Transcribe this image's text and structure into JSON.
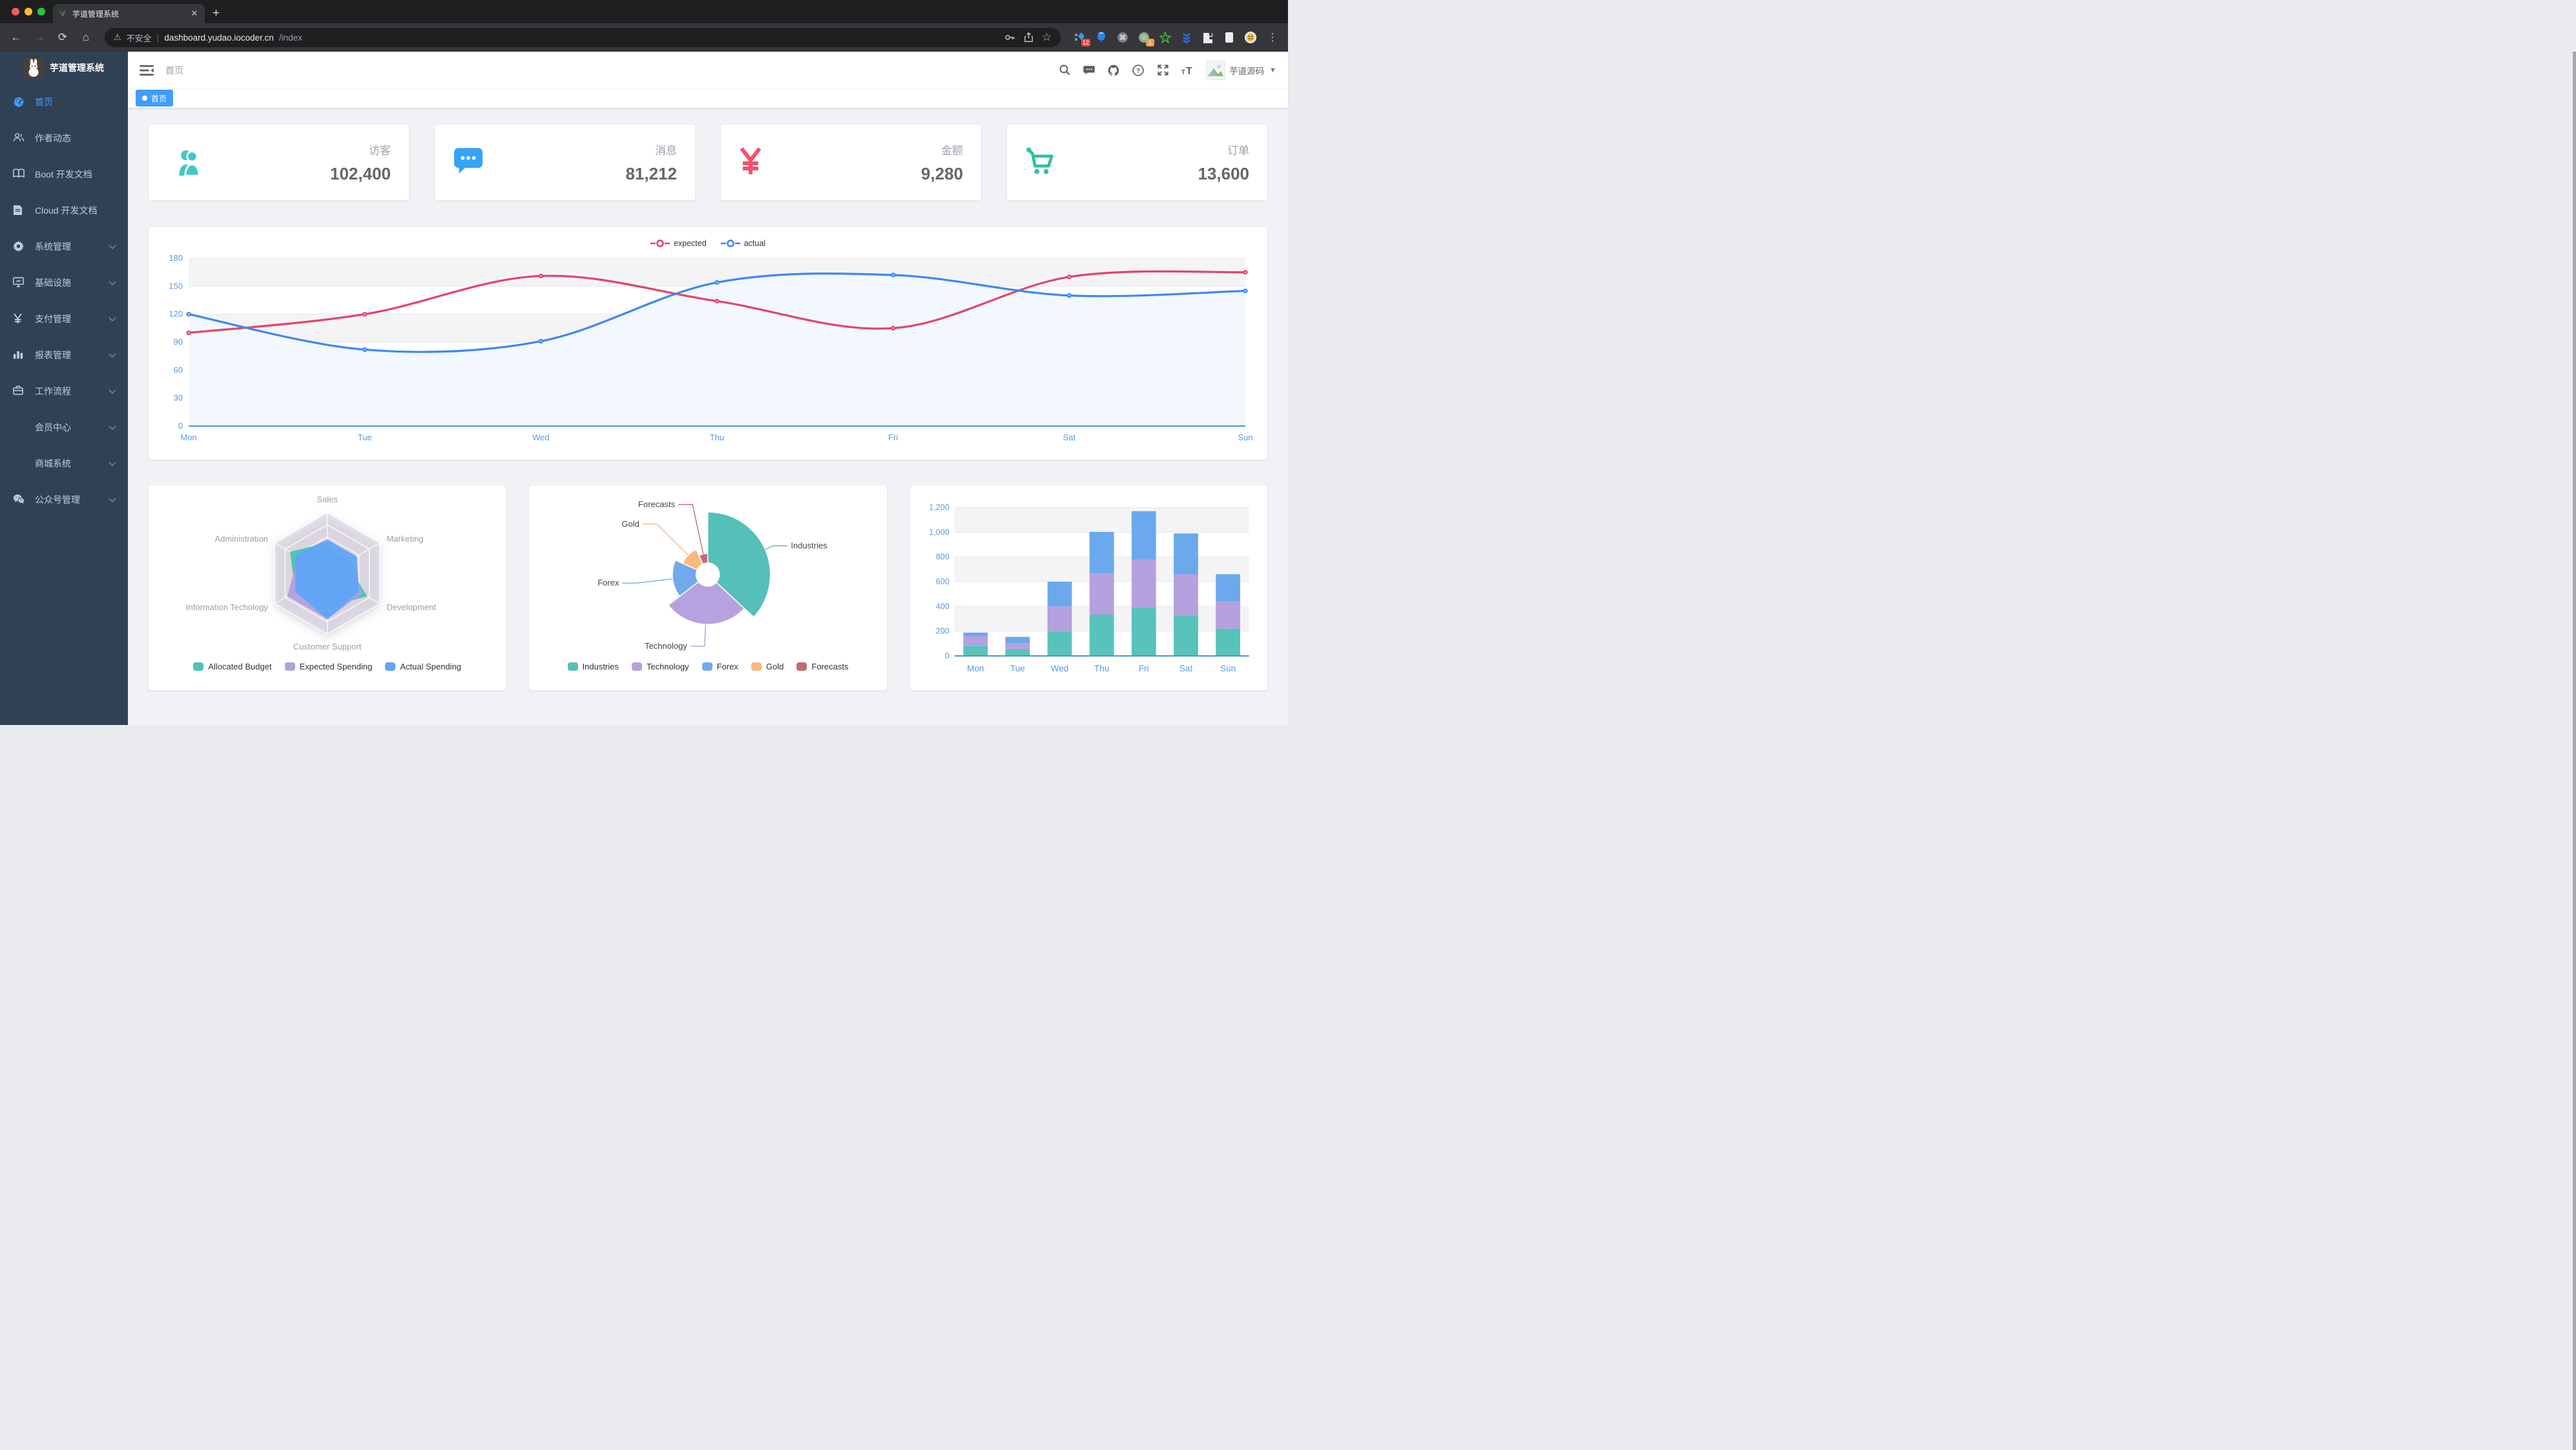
{
  "browser": {
    "tab_title": "芋道管理系统",
    "security_label": "不安全",
    "url_host": "dashboard.yudao.iocoder.cn",
    "url_path": "/index",
    "extensions": [
      {
        "name": "pinned-panel",
        "badge": "12",
        "badge_color": "#e8453c"
      },
      {
        "name": "balloon",
        "badge": "",
        "badge_color": ""
      },
      {
        "name": "command",
        "badge": "",
        "badge_color": ""
      },
      {
        "name": "recorder",
        "badge": "1",
        "badge_color": "#e8a33d"
      },
      {
        "name": "green-star",
        "badge": "",
        "badge_color": ""
      },
      {
        "name": "blue-chevrons",
        "badge": "",
        "badge_color": ""
      },
      {
        "name": "puzzle",
        "badge": "",
        "badge_color": ""
      },
      {
        "name": "reader-mode",
        "badge": "",
        "badge_color": ""
      },
      {
        "name": "profile-emoji",
        "badge": "",
        "badge_color": ""
      }
    ]
  },
  "sidebar": {
    "logo_title": "芋道管理系统",
    "items": [
      {
        "label": "首页",
        "icon": "dashboard",
        "active": true,
        "expandable": false
      },
      {
        "label": "作者动态",
        "icon": "people",
        "active": false,
        "expandable": false
      },
      {
        "label": "Boot 开发文档",
        "icon": "book",
        "active": false,
        "expandable": false
      },
      {
        "label": "Cloud 开发文档",
        "icon": "document",
        "active": false,
        "expandable": false
      },
      {
        "label": "系统管理",
        "icon": "gear",
        "active": false,
        "expandable": true
      },
      {
        "label": "基础设施",
        "icon": "monitor",
        "active": false,
        "expandable": true
      },
      {
        "label": "支付管理",
        "icon": "yen",
        "active": false,
        "expandable": true
      },
      {
        "label": "报表管理",
        "icon": "bar-chart",
        "active": false,
        "expandable": true
      },
      {
        "label": "工作流程",
        "icon": "briefcase",
        "active": false,
        "expandable": true
      },
      {
        "label": "会员中心",
        "icon": "none",
        "active": false,
        "expandable": true
      },
      {
        "label": "商城系统",
        "icon": "none",
        "active": false,
        "expandable": true
      },
      {
        "label": "公众号管理",
        "icon": "wechat",
        "active": false,
        "expandable": true
      }
    ]
  },
  "navbar": {
    "breadcrumb": "首页",
    "username": "芋道源码"
  },
  "tags": [
    {
      "label": "首页",
      "active": true
    }
  ],
  "stat_cards": [
    {
      "label": "访客",
      "value": "102,400",
      "icon": "people",
      "color": "#40c9c6"
    },
    {
      "label": "消息",
      "value": "81,212",
      "icon": "message",
      "color": "#36a3f7"
    },
    {
      "label": "金额",
      "value": "9,280",
      "icon": "money",
      "color": "#f4516c"
    },
    {
      "label": "订单",
      "value": "13,600",
      "icon": "cart",
      "color": "#34bfa3"
    }
  ],
  "chart_data": [
    {
      "type": "line",
      "categories": [
        "Mon",
        "Tue",
        "Wed",
        "Thu",
        "Fri",
        "Sat",
        "Sun"
      ],
      "series": [
        {
          "name": "expected",
          "color": "#e8426a",
          "values": [
            100,
            120,
            161,
            134,
            105,
            160,
            165
          ]
        },
        {
          "name": "actual",
          "color": "#3d87f5",
          "area_color": "#f3f8ff",
          "values": [
            120,
            82,
            91,
            154,
            162,
            140,
            145
          ]
        }
      ],
      "ylim": [
        0,
        180
      ],
      "ytick_step": 30,
      "legend_position": "top",
      "grid": true
    },
    {
      "type": "radar",
      "indicators": [
        {
          "name": "Sales",
          "max": 10000
        },
        {
          "name": "Marketing",
          "max": 20000
        },
        {
          "name": "Development",
          "max": 20000
        },
        {
          "name": "Customer Support",
          "max": 20000
        },
        {
          "name": "Information Techology",
          "max": 20000
        },
        {
          "name": "Administration",
          "max": 20000
        }
      ],
      "series": [
        {
          "name": "Allocated Budget",
          "color": "#4cc3b4",
          "values": [
            5000,
            7000,
            15000,
            11000,
            12000,
            14000
          ]
        },
        {
          "name": "Expected Spending",
          "color": "#b2a0dc",
          "values": [
            4000,
            9000,
            13000,
            15000,
            15000,
            11000
          ]
        },
        {
          "name": "Actual Spending",
          "color": "#60a5f6",
          "values": [
            5500,
            11000,
            12000,
            15000,
            12000,
            12000
          ]
        }
      ],
      "legend_position": "bottom"
    },
    {
      "type": "pie",
      "rose": true,
      "items": [
        {
          "name": "Industries",
          "value": 320,
          "color": "#55c0b8"
        },
        {
          "name": "Technology",
          "value": 240,
          "color": "#b6a2de"
        },
        {
          "name": "Forex",
          "value": 149,
          "color": "#70aaec"
        },
        {
          "name": "Gold",
          "value": 100,
          "color": "#f6ba7d"
        },
        {
          "name": "Forecasts",
          "value": 59,
          "color": "#c26a72"
        }
      ],
      "legend_position": "bottom"
    },
    {
      "type": "bar",
      "stacked": true,
      "categories": [
        "Mon",
        "Tue",
        "Wed",
        "Thu",
        "Fri",
        "Sat",
        "Sun"
      ],
      "series": [
        {
          "color": "#57c3bb",
          "values": [
            79,
            52,
            200,
            334,
            390,
            330,
            220
          ]
        },
        {
          "color": "#b4a1dd",
          "values": [
            80,
            52,
            200,
            334,
            390,
            330,
            220
          ]
        },
        {
          "color": "#6ba9ec",
          "values": [
            30,
            50,
            200,
            334,
            390,
            330,
            220
          ]
        }
      ],
      "ylim": [
        0,
        1200
      ],
      "ytick_step": 200,
      "grid": true
    }
  ]
}
